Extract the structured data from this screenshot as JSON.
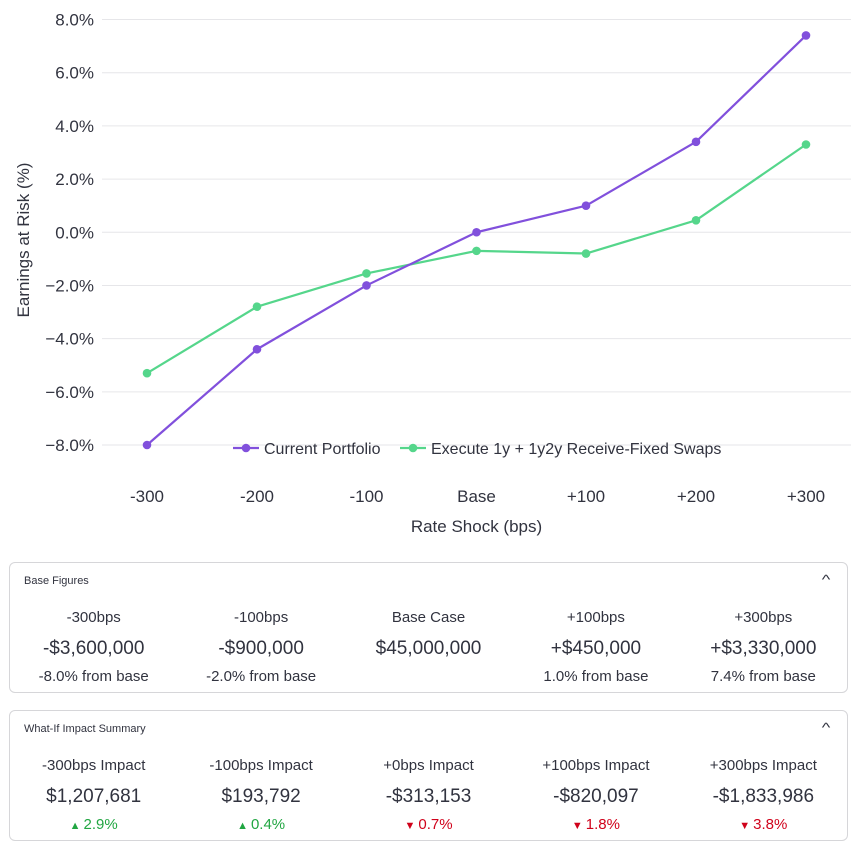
{
  "chart_data": {
    "type": "line",
    "categories": [
      "-300",
      "-200",
      "-100",
      "Base",
      "+100",
      "+200",
      "+300"
    ],
    "series": [
      {
        "name": "Current Portfolio",
        "color": "#8150dc",
        "values": [
          -8.0,
          -4.4,
          -2.0,
          0.0,
          1.0,
          3.4,
          7.4
        ]
      },
      {
        "name": "Execute 1y + 1y2y Receive-Fixed Swaps",
        "color": "#55d68b",
        "values": [
          -5.3,
          -2.8,
          -1.55,
          -0.7,
          -0.8,
          0.45,
          3.3
        ]
      }
    ],
    "xlabel": "Rate Shock (bps)",
    "ylabel": "Earnings at Risk (%)",
    "ylim": [
      -8.0,
      8.0
    ],
    "yticks": [
      8.0,
      6.0,
      4.0,
      2.0,
      0.0,
      -2.0,
      -4.0,
      -6.0,
      -8.0
    ],
    "ytick_labels": [
      "8.0%",
      "6.0%",
      "4.0%",
      "2.0%",
      "0.0%",
      "−2.0%",
      "−4.0%",
      "−6.0%",
      "−8.0%"
    ],
    "grid": true,
    "legend_position": "bottom-center"
  },
  "base_figures": {
    "title": "Base Figures",
    "items": [
      {
        "label": "-300bps",
        "value": "-$3,600,000",
        "note": "-8.0% from base"
      },
      {
        "label": "-100bps",
        "value": "-$900,000",
        "note": "-2.0% from base"
      },
      {
        "label": "Base Case",
        "value": "$45,000,000",
        "note": ""
      },
      {
        "label": "+100bps",
        "value": "+$450,000",
        "note": "1.0% from base"
      },
      {
        "label": "+300bps",
        "value": "+$3,330,000",
        "note": "7.4% from base"
      }
    ]
  },
  "impact_summary": {
    "title": "What-If Impact Summary",
    "items": [
      {
        "label": "-300bps Impact",
        "value": "$1,207,681",
        "delta": "2.9%",
        "direction": "up"
      },
      {
        "label": "-100bps Impact",
        "value": "$193,792",
        "delta": "0.4%",
        "direction": "up"
      },
      {
        "label": "+0bps Impact",
        "value": "-$313,153",
        "delta": "0.7%",
        "direction": "down"
      },
      {
        "label": "+100bps Impact",
        "value": "-$820,097",
        "delta": "1.8%",
        "direction": "down"
      },
      {
        "label": "+300bps Impact",
        "value": "-$1,833,986",
        "delta": "3.8%",
        "direction": "down"
      }
    ]
  },
  "icons": {
    "collapse": "chevron-up-icon",
    "delta_up": "triangle-up-icon",
    "delta_down": "triangle-down-icon"
  }
}
